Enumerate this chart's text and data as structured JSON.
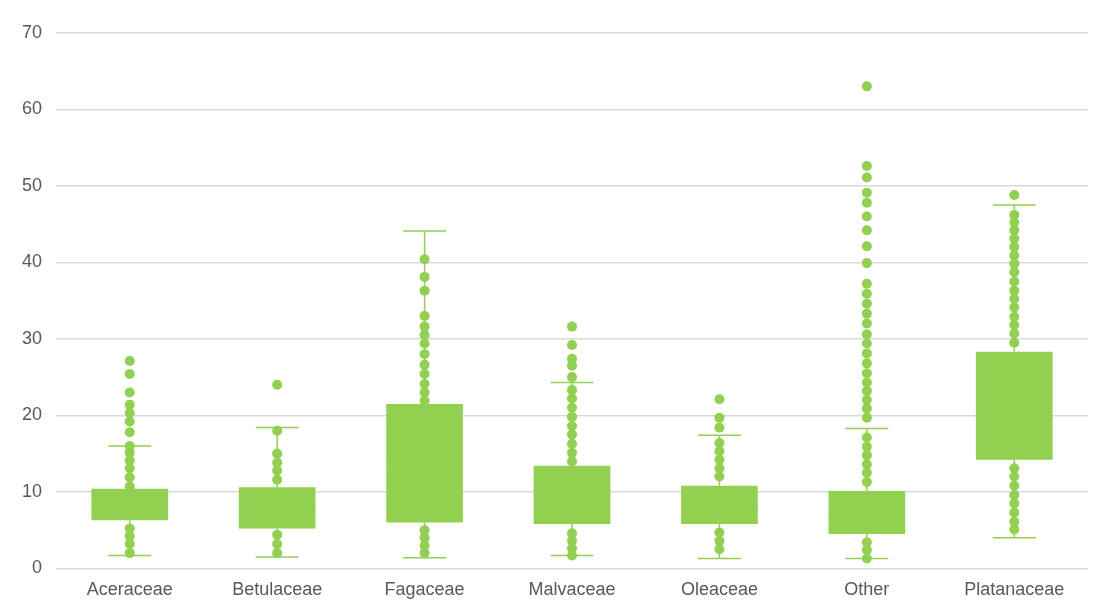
{
  "chart_data": {
    "type": "box",
    "color": "#92d050",
    "categories": [
      "Aceraceae",
      "Betulaceae",
      "Fagaceae",
      "Malvaceae",
      "Oleaceae",
      "Other",
      "Platanaceae"
    ],
    "boxes": [
      {
        "low": 1.7,
        "q1": 6.3,
        "median": 8.3,
        "q3": 10.4,
        "high": 16.0,
        "outliers": [
          17.8,
          19.2,
          20.3,
          21.4,
          23,
          25.4,
          27.1
        ]
      },
      {
        "low": 1.5,
        "q1": 5.2,
        "median": 7.9,
        "q3": 10.6,
        "high": 18.4,
        "outliers": [
          24
        ]
      },
      {
        "low": 1.4,
        "q1": 6.0,
        "median": 13.7,
        "q3": 21.5,
        "high": 44.1
      },
      {
        "low": 1.7,
        "q1": 5.8,
        "median": 9.6,
        "q3": 13.4,
        "high": 24.3,
        "outliers": [
          25.0,
          26.5,
          27.4,
          29.2,
          31.6
        ]
      },
      {
        "low": 1.3,
        "q1": 5.8,
        "median": 8.3,
        "q3": 10.8,
        "high": 17.4,
        "outliers": [
          18.4,
          19.7,
          22.1
        ]
      },
      {
        "low": 1.3,
        "q1": 4.5,
        "median": 7.3,
        "q3": 10.1,
        "high": 18.3,
        "outliers": [
          19.7,
          20.9,
          22.0,
          23.2,
          24.3,
          25.5,
          26.8,
          28.1,
          29.4,
          30.6,
          32.0,
          33.3,
          34.6,
          35.9,
          37.2,
          39.9,
          42.1,
          44.2,
          46.0,
          47.8,
          49.1,
          51.1,
          52.6,
          63
        ]
      },
      {
        "low": 4.0,
        "q1": 14.2,
        "median": 21.2,
        "q3": 28.3,
        "high": 47.5,
        "outliers": [
          48.8
        ]
      }
    ],
    "series": [
      {
        "type": "scatter",
        "color": "#92d050",
        "x": [
          "Aceraceae",
          "Aceraceae",
          "Aceraceae",
          "Aceraceae",
          "Aceraceae",
          "Aceraceae",
          "Aceraceae",
          "Aceraceae",
          "Aceraceae",
          "Aceraceae",
          "Betulaceae",
          "Betulaceae",
          "Betulaceae",
          "Betulaceae",
          "Betulaceae",
          "Betulaceae",
          "Betulaceae",
          "Betulaceae",
          "Fagaceae",
          "Fagaceae",
          "Fagaceae",
          "Fagaceae",
          "Fagaceae",
          "Fagaceae",
          "Fagaceae",
          "Fagaceae",
          "Fagaceae",
          "Fagaceae",
          "Fagaceae",
          "Fagaceae",
          "Fagaceae",
          "Fagaceae",
          "Fagaceae",
          "Fagaceae",
          "Fagaceae",
          "Malvaceae",
          "Malvaceae",
          "Malvaceae",
          "Malvaceae",
          "Malvaceae",
          "Malvaceae",
          "Malvaceae",
          "Malvaceae",
          "Malvaceae",
          "Malvaceae",
          "Malvaceae",
          "Malvaceae",
          "Malvaceae",
          "Oleaceae",
          "Oleaceae",
          "Oleaceae",
          "Oleaceae",
          "Oleaceae",
          "Oleaceae",
          "Oleaceae",
          "Oleaceae",
          "Other",
          "Other",
          "Other",
          "Other",
          "Other",
          "Other",
          "Other",
          "Other",
          "Other",
          "Platanaceae",
          "Platanaceae",
          "Platanaceae",
          "Platanaceae",
          "Platanaceae",
          "Platanaceae",
          "Platanaceae",
          "Platanaceae",
          "Platanaceae",
          "Platanaceae",
          "Platanaceae",
          "Platanaceae",
          "Platanaceae",
          "Platanaceae",
          "Platanaceae",
          "Platanaceae",
          "Platanaceae",
          "Platanaceae",
          "Platanaceae",
          "Platanaceae",
          "Platanaceae",
          "Platanaceae",
          "Platanaceae",
          "Platanaceae"
        ],
        "values": [
          10.7,
          11.9,
          13.1,
          14.1,
          15.1,
          16.0,
          5.2,
          4.2,
          3.2,
          2.0,
          11.6,
          12.8,
          13.8,
          15.0,
          18.0,
          4.4,
          3.2,
          2.0,
          21.9,
          23.0,
          24.1,
          25.4,
          26.6,
          28.0,
          29.4,
          30.5,
          31.6,
          33.0,
          36.3,
          38.1,
          40.4,
          5.0,
          4.0,
          3.0,
          2.0,
          14.0,
          15.1,
          16.3,
          17.5,
          18.6,
          19.8,
          21.0,
          22.2,
          23.3,
          4.6,
          3.6,
          2.6,
          1.7,
          12.0,
          13.1,
          14.2,
          15.3,
          16.4,
          4.7,
          3.6,
          2.5,
          11.3,
          12.5,
          13.6,
          14.8,
          15.9,
          17.1,
          3.4,
          2.4,
          1.3,
          29.5,
          30.7,
          31.8,
          32.9,
          34.1,
          35.2,
          36.3,
          37.5,
          38.7,
          39.8,
          40.9,
          42.0,
          43.1,
          44.2,
          45.2,
          46.2,
          13.1,
          12.0,
          10.8,
          9.6,
          8.5,
          7.3,
          6.1,
          5.1
        ]
      }
    ],
    "ylim": [
      0,
      70
    ],
    "yticks": [
      0,
      10,
      20,
      30,
      40,
      50,
      60,
      70
    ],
    "grid": "y",
    "legend": false
  }
}
